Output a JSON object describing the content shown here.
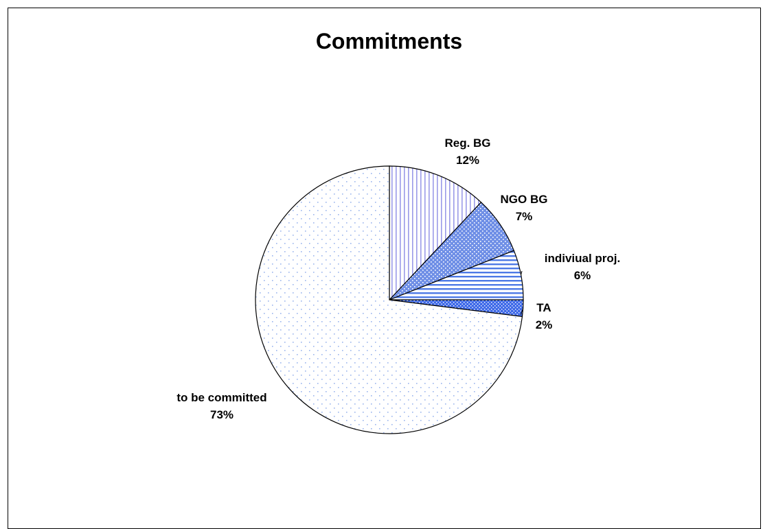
{
  "chart_data": {
    "type": "pie",
    "title": "Commitments",
    "start_angle_deg": 0,
    "direction": "clockwise",
    "slices": [
      {
        "label": "Reg. BG",
        "percent_label": "12%",
        "value": 12,
        "fill": "#ffffff",
        "pattern": "vertical-stripes",
        "pattern_color": "#9a9ae8"
      },
      {
        "label": "NGO BG",
        "percent_label": "7%",
        "value": 7,
        "fill": "#6f8fe6",
        "pattern": "dots-dense",
        "pattern_color": "#ffffff"
      },
      {
        "label": "indiviual proj.",
        "percent_label": "6%",
        "value": 6,
        "fill": "#ffffff",
        "pattern": "horizontal-stripes",
        "pattern_color": "#4d79e6"
      },
      {
        "label": "TA",
        "percent_label": "2%",
        "value": 2,
        "fill": "#3f6ae8",
        "pattern": "dots-light",
        "pattern_color": "#ffffff"
      },
      {
        "label": "to be committed",
        "percent_label": "73%",
        "value": 73,
        "fill": "#ffffff",
        "pattern": "dots-sparse",
        "pattern_color": "#9ab4ee"
      }
    ],
    "legend": "none"
  }
}
